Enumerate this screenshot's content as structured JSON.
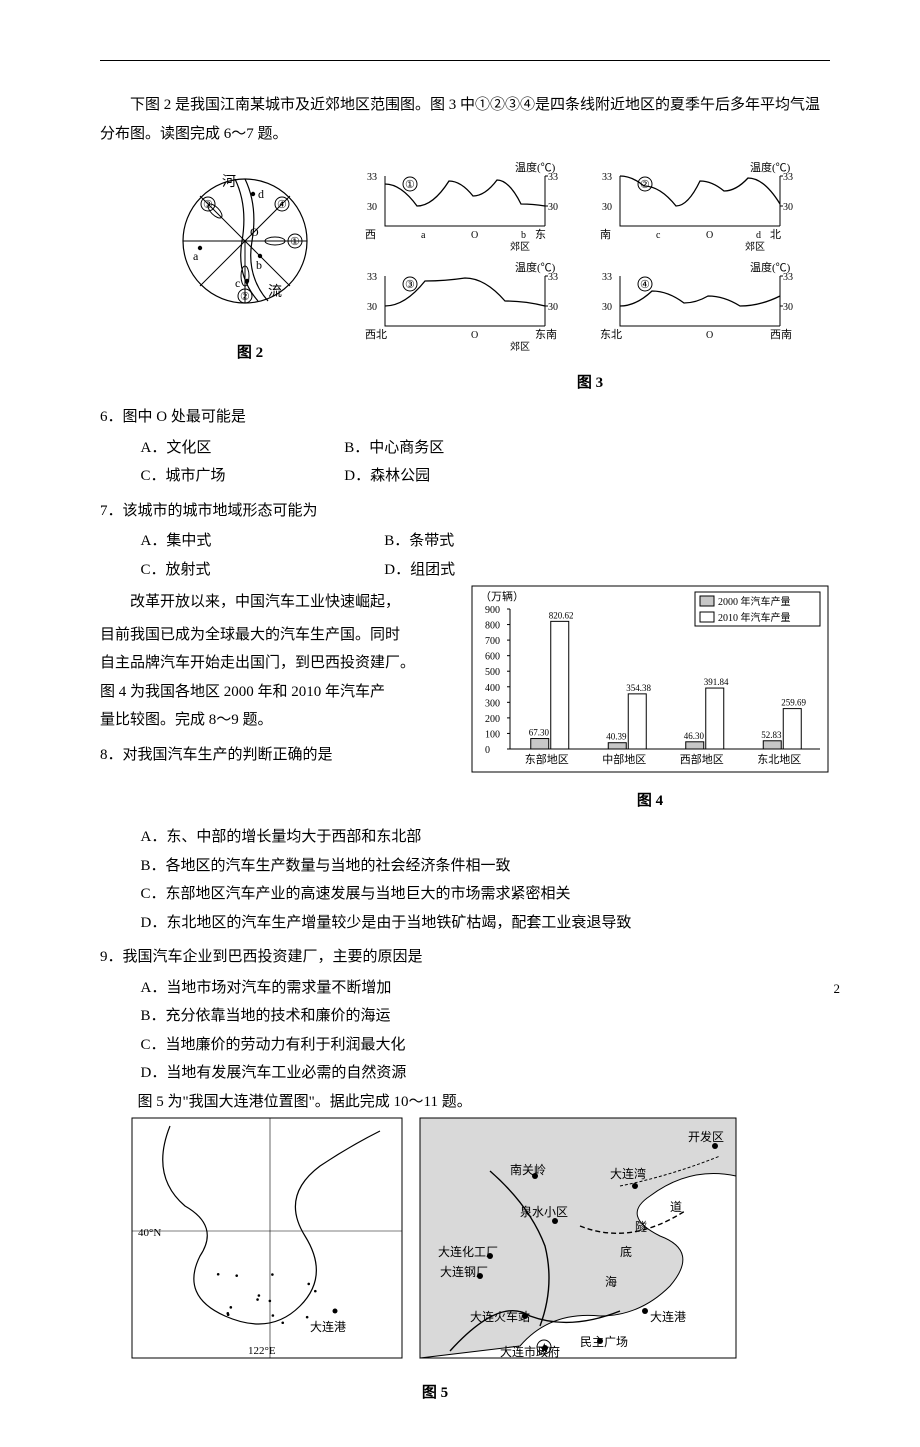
{
  "intro1": "下图 2 是我国江南某城市及近郊地区范围图。图 3 中①②③④是四条线附近地区的夏季午后多年平均气温分布图。读图完成 6～7 题。",
  "fig2": {
    "label": "图 2",
    "river_label_top": "河",
    "river_label_bottom": "流",
    "center": "O",
    "pts": {
      "a": "a",
      "b": "b",
      "c": "c",
      "d": "d"
    },
    "nums": {
      "n1": "①",
      "n2": "②",
      "n3": "③",
      "n4": "④"
    }
  },
  "fig3": {
    "label": "图 3",
    "ylabel": "温度(℃)",
    "yticks": [
      "33",
      "30"
    ],
    "panels": [
      {
        "n": "①",
        "xl": "西",
        "xr": "东",
        "xtra": "郊区",
        "marks": [
          "a",
          "O",
          "b"
        ],
        "curve": [
          [
            0,
            32.2
          ],
          [
            0.2,
            30
          ],
          [
            0.4,
            32.5
          ],
          [
            0.55,
            31
          ],
          [
            0.7,
            32.6
          ],
          [
            0.85,
            30.2
          ],
          [
            1,
            30
          ]
        ]
      },
      {
        "n": "②",
        "xl": "南",
        "xr": "北",
        "xtra": "郊区",
        "marks": [
          "c",
          "O",
          "d"
        ],
        "curve": [
          [
            0,
            33
          ],
          [
            0.15,
            32
          ],
          [
            0.35,
            30
          ],
          [
            0.5,
            32.5
          ],
          [
            0.65,
            31.5
          ],
          [
            0.8,
            32.8
          ],
          [
            1,
            30.2
          ]
        ]
      },
      {
        "n": "③",
        "xl": "西北",
        "xr": "东南",
        "xtra": "郊区",
        "marks": [
          "",
          "O",
          ""
        ],
        "curve": [
          [
            0,
            30
          ],
          [
            0.25,
            32.5
          ],
          [
            0.5,
            32.8
          ],
          [
            0.75,
            30.5
          ],
          [
            1,
            30
          ]
        ]
      },
      {
        "n": "④",
        "xl": "东北",
        "xr": "西南",
        "xtra": "",
        "marks": [
          "",
          "O",
          ""
        ],
        "curve": [
          [
            0,
            30
          ],
          [
            0.2,
            31.5
          ],
          [
            0.4,
            30.3
          ],
          [
            0.55,
            31
          ],
          [
            0.75,
            30
          ],
          [
            1,
            31
          ]
        ]
      }
    ]
  },
  "q6": {
    "stem": "6．图中 O 处最可能是",
    "A": "A．文化区",
    "B": "B．中心商务区",
    "C": "C．城市广场",
    "D": "D．森林公园"
  },
  "q7": {
    "stem": "7．该城市的城市地域形态可能为",
    "A": "A．集中式",
    "B": "B．条带式",
    "C": "C．放射式",
    "D": "D．组团式"
  },
  "intro2": {
    "l1": "改革开放以来，中国汽车工业快速崛起，",
    "l2": "目前我国已成为全球最大的汽车生产国。同时",
    "l3": "自主品牌汽车开始走出国门，到巴西投资建厂。",
    "l4": "图 4 为我国各地区 2000 年和 2010 年汽车产",
    "l5": "量比较图。完成 8～9 题。"
  },
  "fig4": {
    "label": "图 4",
    "ylabel": "（万辆）",
    "yticks": [
      "0",
      "100",
      "200",
      "300",
      "400",
      "500",
      "600",
      "700",
      "800",
      "900"
    ],
    "legend": [
      "2000 年汽车产量",
      "2010 年汽车产量"
    ],
    "categories": [
      "东部地区",
      "中部地区",
      "西部地区",
      "东北地区"
    ],
    "values2000": [
      67.3,
      40.39,
      46.3,
      52.83
    ],
    "values2010": [
      820.62,
      354.38,
      391.84,
      259.69
    ],
    "colors": {
      "fill2000": "#c7c7c7",
      "fill2010": "#ffffff",
      "stroke": "#000000"
    },
    "ymax": 900
  },
  "q8": {
    "stem": "8．对我国汽车生产的判断正确的是",
    "A": "A．东、中部的增长量均大于西部和东北部",
    "B": "B．各地区的汽车生产数量与当地的社会经济条件相一致",
    "C": "C．东部地区汽车产业的高速发展与当地巨大的市场需求紧密相关",
    "D": "D．东北地区的汽车生产增量较少是由于当地铁矿枯竭，配套工业衰退导致"
  },
  "q9": {
    "stem": "9．我国汽车企业到巴西投资建厂，主要的原因是",
    "A": "A．当地市场对汽车的需求量不断增加",
    "B": "B．充分依靠当地的技术和廉价的海运",
    "C": "C．当地廉价的劳动力有利于利润最大化",
    "D": "D．当地有发展汽车工业必需的自然资源"
  },
  "intro3": "图 5 为\"我国大连港位置图\"。据此完成 10～11 题。",
  "fig5": {
    "label": "图 5",
    "left": {
      "dalian": "大连港",
      "lat": "40°N",
      "lon": "122°E"
    },
    "right": {
      "places": [
        "开发区",
        "南关岭",
        "大连湾",
        "泉水小区",
        "隧",
        "道",
        "海",
        "底",
        "大连化工厂",
        "大连钢厂",
        "大连火车站",
        "大连港",
        "大连市政府",
        "民主广场"
      ]
    }
  },
  "pagenum": "2"
}
